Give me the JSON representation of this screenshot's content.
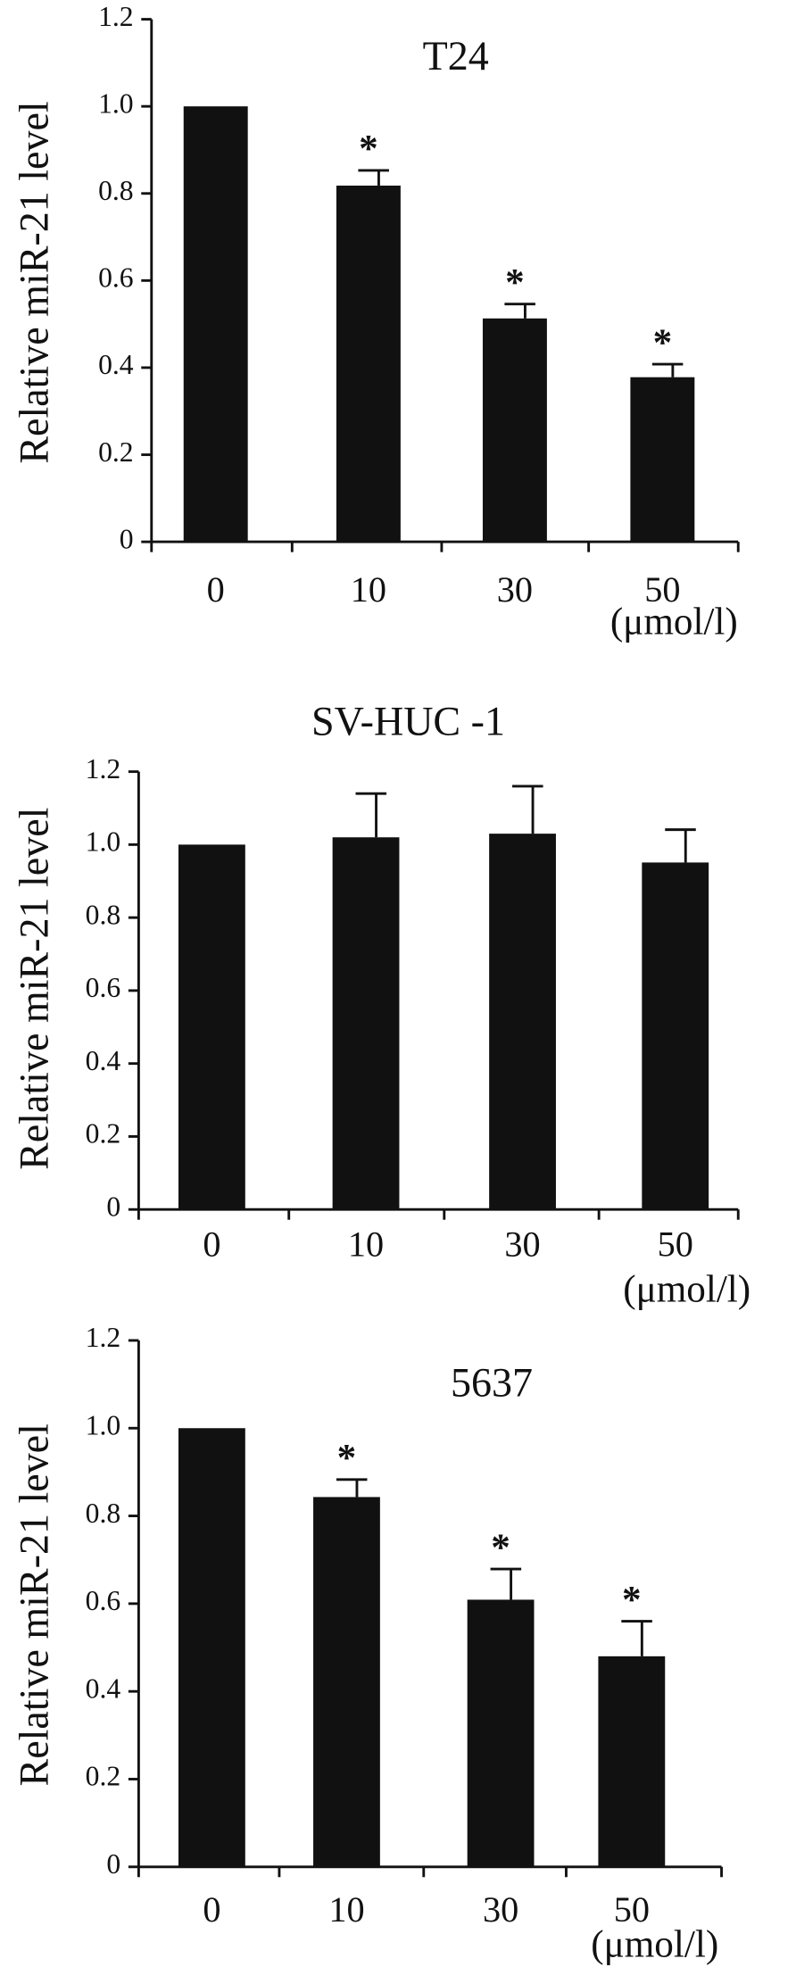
{
  "chart_data": [
    {
      "type": "bar",
      "title": "T24",
      "ylabel": "Relative miR-21 level",
      "xlabel": "(μmol/l)",
      "categories": [
        "0",
        "10",
        "30",
        "50"
      ],
      "values": [
        1.0,
        0.818,
        0.513,
        0.378
      ],
      "errors": [
        null,
        0.035,
        0.033,
        0.03
      ],
      "markers": [
        null,
        "*",
        "*",
        "*"
      ],
      "color": "#111111",
      "ylim": [
        0,
        1.2
      ],
      "yticks": [
        0,
        0.2,
        0.4,
        0.6,
        0.8,
        {
          "value": 1,
          "label": "1.0"
        },
        1.2
      ]
    },
    {
      "type": "bar",
      "title": "SV-HUC -1",
      "ylabel": "Relative miR-21 level",
      "xlabel": "(μmol/l)",
      "categories": [
        "0",
        "10",
        "30",
        "50"
      ],
      "values": [
        1.0,
        1.02,
        1.03,
        0.951
      ],
      "errors": [
        null,
        0.12,
        0.13,
        0.09
      ],
      "color": "#111111",
      "ylim": [
        0,
        1.2
      ],
      "yticks": [
        0,
        0.2,
        0.4,
        0.6,
        0.8,
        {
          "value": 1,
          "label": "1.0"
        },
        1.2
      ]
    },
    {
      "type": "bar",
      "title": "5637",
      "ylabel": "Relative miR-21 level",
      "xlabel": "(μmol/l)",
      "categories": [
        "0",
        "10",
        "30",
        "50"
      ],
      "values": [
        1.0,
        0.843,
        0.609,
        0.48
      ],
      "errors": [
        null,
        0.04,
        0.07,
        0.08
      ],
      "markers": [
        null,
        "*",
        "*",
        "*"
      ],
      "color": "#111111",
      "ylim": [
        0,
        1.2
      ],
      "yticks": [
        0,
        0.2,
        0.4,
        0.6,
        0.8,
        {
          "value": 1,
          "label": "1.0"
        },
        1.2
      ]
    }
  ]
}
